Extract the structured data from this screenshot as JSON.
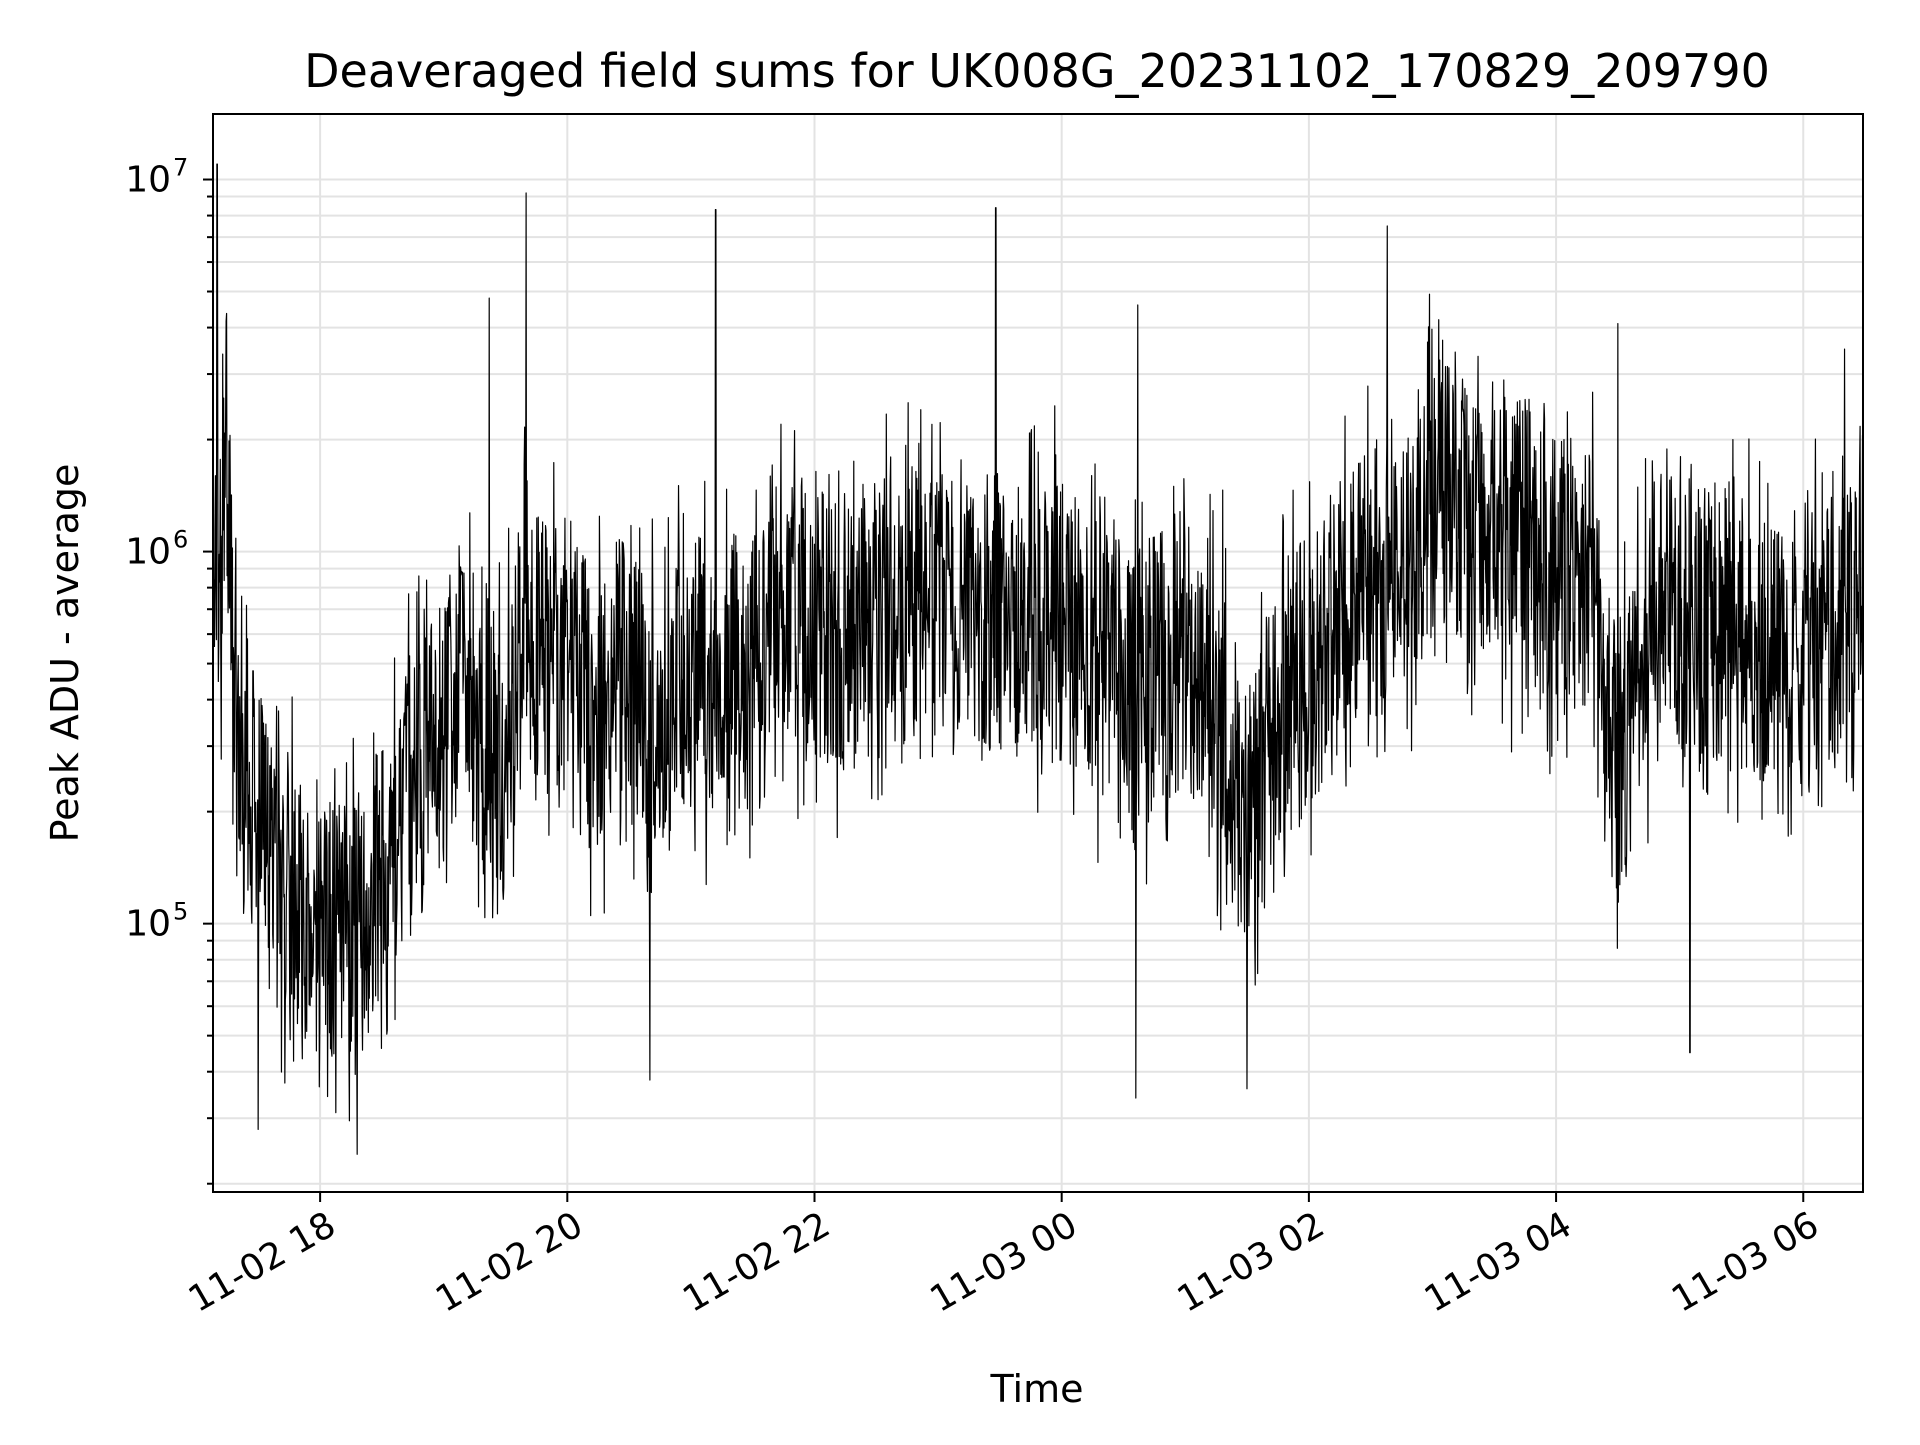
{
  "chart_data": {
    "type": "line",
    "title": "Deaveraged field sums for UK008G_20231102_170829_209790",
    "xlabel": "Time",
    "ylabel": "Peak ADU - average",
    "y_scale": "log",
    "ylim": [
      19000,
      15000000
    ],
    "xlim": [
      "2023-11-02 17:08",
      "2023-11-03 06:29"
    ],
    "grid": true,
    "line_color": "#000000",
    "x_ticks": [
      "11-02 18",
      "11-02 20",
      "11-02 22",
      "11-03 00",
      "11-03 02",
      "11-03 04",
      "11-03 06"
    ],
    "x_tick_times": [
      "2023-11-02 18:00",
      "2023-11-02 20:00",
      "2023-11-02 22:00",
      "2023-11-03 00:00",
      "2023-11-03 02:00",
      "2023-11-03 04:00",
      "2023-11-03 06:00"
    ],
    "y_ticks": [
      {
        "base": "10",
        "exp": "5",
        "value": 100000
      },
      {
        "base": "10",
        "exp": "6",
        "value": 1000000
      },
      {
        "base": "10",
        "exp": "7",
        "value": 10000000
      }
    ],
    "series": [
      {
        "x": [
          "2023-11-02 17:08",
          "2023-11-02 17:15",
          "2023-11-02 17:20",
          "2023-11-02 17:30",
          "2023-11-02 17:40",
          "2023-11-02 17:50",
          "2023-11-02 18:00",
          "2023-11-02 18:10",
          "2023-11-02 18:20",
          "2023-11-02 18:30",
          "2023-11-02 18:40",
          "2023-11-02 18:50",
          "2023-11-02 19:00",
          "2023-11-02 19:10",
          "2023-11-02 19:20",
          "2023-11-02 19:30",
          "2023-11-02 19:40",
          "2023-11-02 19:50",
          "2023-11-02 20:00",
          "2023-11-02 20:10",
          "2023-11-02 20:20",
          "2023-11-02 20:30",
          "2023-11-02 20:40",
          "2023-11-02 20:50",
          "2023-11-02 21:00",
          "2023-11-02 21:10",
          "2023-11-02 21:20",
          "2023-11-02 21:30",
          "2023-11-02 21:40",
          "2023-11-02 21:50",
          "2023-11-02 22:00",
          "2023-11-02 22:15",
          "2023-11-02 22:30",
          "2023-11-02 22:45",
          "2023-11-02 23:00",
          "2023-11-02 23:15",
          "2023-11-02 23:30",
          "2023-11-02 23:45",
          "2023-11-03 00:00",
          "2023-11-03 00:15",
          "2023-11-03 00:30",
          "2023-11-03 00:45",
          "2023-11-03 01:00",
          "2023-11-03 01:15",
          "2023-11-03 01:30",
          "2023-11-03 01:45",
          "2023-11-03 02:00",
          "2023-11-03 02:15",
          "2023-11-03 02:30",
          "2023-11-03 02:45",
          "2023-11-03 03:00",
          "2023-11-03 03:15",
          "2023-11-03 03:30",
          "2023-11-03 03:45",
          "2023-11-03 04:00",
          "2023-11-03 04:15",
          "2023-11-03 04:30",
          "2023-11-03 04:45",
          "2023-11-03 05:00",
          "2023-11-03 05:15",
          "2023-11-03 05:30",
          "2023-11-03 05:45",
          "2023-11-03 06:00",
          "2023-11-03 06:15",
          "2023-11-03 06:29"
        ],
        "y": [
          800000,
          1300000,
          300000,
          180000,
          120000,
          100000,
          85000,
          90000,
          100000,
          130000,
          180000,
          260000,
          350000,
          450000,
          300000,
          250000,
          700000,
          500000,
          550000,
          420000,
          380000,
          550000,
          300000,
          420000,
          500000,
          450000,
          500000,
          380000,
          700000,
          650000,
          620000,
          600000,
          650000,
          700000,
          750000,
          700000,
          680000,
          720000,
          650000,
          550000,
          480000,
          520000,
          500000,
          420000,
          180000,
          380000,
          480000,
          650000,
          800000,
          1000000,
          1300000,
          1400000,
          1200000,
          1100000,
          900000,
          850000,
          250000,
          600000,
          700000,
          650000,
          600000,
          550000,
          500000,
          600000,
          900000
        ]
      }
    ],
    "spikes": [
      {
        "x": "2023-11-02 17:10",
        "y": 11000000
      },
      {
        "x": "2023-11-02 19:40",
        "y": 9200000
      },
      {
        "x": "2023-11-02 19:22",
        "y": 4800000
      },
      {
        "x": "2023-11-02 21:12",
        "y": 8300000
      },
      {
        "x": "2023-11-02 23:28",
        "y": 8400000
      },
      {
        "x": "2023-11-03 00:37",
        "y": 4600000
      },
      {
        "x": "2023-11-03 02:38",
        "y": 7500000
      },
      {
        "x": "2023-11-03 03:05",
        "y": 3700000
      },
      {
        "x": "2023-11-03 04:30",
        "y": 4100000
      },
      {
        "x": "2023-11-03 06:20",
        "y": 3500000
      },
      {
        "x": "2023-11-02 18:18",
        "y": 24000
      },
      {
        "x": "2023-11-02 17:30",
        "y": 28000
      },
      {
        "x": "2023-11-03 00:36",
        "y": 34000
      },
      {
        "x": "2023-11-03 01:30",
        "y": 36000
      },
      {
        "x": "2023-11-02 20:40",
        "y": 38000
      },
      {
        "x": "2023-11-03 05:05",
        "y": 45000
      }
    ]
  }
}
